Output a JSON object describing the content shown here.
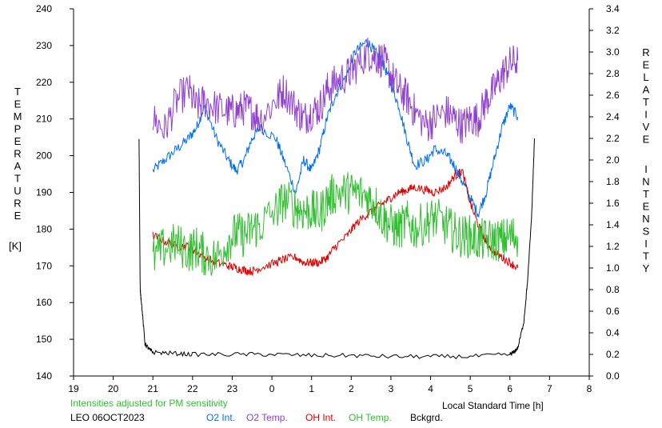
{
  "chart_data": {
    "type": "line",
    "title": "",
    "xlabel": "Local Standard Time [h]",
    "ylabel_left_letters": [
      "T",
      "E",
      "M",
      "P",
      "E",
      "R",
      "A",
      "T",
      "U",
      "R",
      "E"
    ],
    "ylabel_left_unit": "[K]",
    "ylabel_right_letters_1": [
      "R",
      "E",
      "L",
      "A",
      "T",
      "I",
      "V",
      "E"
    ],
    "ylabel_right_letters_2": [
      "I",
      "N",
      "T",
      "E",
      "N",
      "S",
      "I",
      "T",
      "Y"
    ],
    "xlim": [
      19,
      32
    ],
    "ylim_left": [
      140,
      240
    ],
    "ylim_right": [
      0.0,
      3.4
    ],
    "x_ticks": [
      19,
      20,
      21,
      22,
      23,
      24,
      25,
      26,
      27,
      28,
      29,
      30,
      31,
      32
    ],
    "x_tick_labels": [
      "19",
      "20",
      "21",
      "22",
      "23",
      "0",
      "1",
      "2",
      "3",
      "4",
      "5",
      "6",
      "7",
      "8"
    ],
    "y_left_ticks": [
      "140",
      "150",
      "160",
      "170",
      "180",
      "190",
      "200",
      "210",
      "220",
      "230",
      "240"
    ],
    "y_right_ticks": [
      "0.0",
      "0.2",
      "0.4",
      "0.6",
      "0.8",
      "1.0",
      "1.2",
      "1.4",
      "1.6",
      "1.8",
      "2.0",
      "2.2",
      "2.4",
      "2.6",
      "2.8",
      "3.0",
      "3.2",
      "3.4"
    ],
    "grid": false,
    "legend_position": "bottom",
    "note": "Intensities adjusted for PM sensitivity",
    "station": "LEO 06OCT2023",
    "series": [
      {
        "name": "O2 Int.",
        "axis": "right",
        "color": "#0070f0",
        "noise": 0.05,
        "x": [
          21.0,
          21.3,
          21.6,
          21.9,
          22.1,
          22.3,
          22.6,
          22.9,
          23.1,
          23.3,
          23.5,
          23.7,
          24.1,
          24.3,
          24.6,
          24.8,
          25.0,
          25.2,
          25.4,
          25.6,
          25.9,
          26.1,
          26.4,
          26.6,
          26.8,
          27.0,
          27.2,
          27.4,
          27.6,
          27.9,
          28.1,
          28.4,
          28.6,
          28.8,
          29.0,
          29.2,
          29.4,
          29.6,
          29.8,
          30.0,
          30.2
        ],
        "y": [
          1.9,
          2.0,
          2.1,
          2.2,
          2.3,
          2.5,
          2.2,
          2.0,
          1.9,
          2.0,
          2.2,
          2.3,
          2.2,
          2.0,
          1.7,
          2.0,
          1.9,
          2.1,
          2.4,
          2.6,
          2.8,
          3.0,
          3.1,
          3.0,
          2.9,
          2.7,
          2.5,
          2.2,
          1.95,
          2.0,
          2.1,
          2.05,
          1.95,
          1.8,
          1.65,
          1.5,
          1.7,
          2.0,
          2.3,
          2.5,
          2.4
        ]
      },
      {
        "name": "O2 Temp.",
        "axis": "left",
        "color": "#9040d0",
        "noise": 5,
        "x": [
          21.0,
          21.3,
          21.6,
          21.9,
          22.1,
          22.3,
          22.6,
          22.9,
          23.1,
          23.3,
          23.5,
          23.7,
          24.1,
          24.3,
          24.6,
          24.8,
          25.0,
          25.2,
          25.4,
          25.6,
          25.9,
          26.1,
          26.4,
          26.6,
          26.8,
          27.0,
          27.2,
          27.4,
          27.6,
          27.9,
          28.1,
          28.4,
          28.6,
          28.8,
          29.0,
          29.2,
          29.4,
          29.6,
          29.8,
          30.0,
          30.2
        ],
        "y": [
          210,
          207,
          215,
          218,
          213,
          215,
          213,
          212,
          212,
          213,
          212,
          210,
          215,
          218,
          213,
          210,
          212,
          213,
          218,
          220,
          222,
          224,
          228,
          227,
          226,
          222,
          218,
          216,
          212,
          208,
          210,
          212,
          210,
          208,
          210,
          210,
          215,
          218,
          222,
          225,
          226
        ]
      },
      {
        "name": "OH Int.",
        "axis": "right",
        "color": "#e00000",
        "noise": 0.04,
        "x": [
          21.0,
          21.3,
          21.6,
          21.9,
          22.1,
          22.3,
          22.6,
          22.9,
          23.1,
          23.3,
          23.5,
          23.7,
          24.1,
          24.3,
          24.6,
          24.8,
          25.0,
          25.2,
          25.4,
          25.6,
          25.9,
          26.1,
          26.4,
          26.6,
          26.8,
          27.0,
          27.2,
          27.4,
          27.6,
          27.9,
          28.1,
          28.4,
          28.6,
          28.8,
          29.0,
          29.2,
          29.4,
          29.6,
          29.8,
          30.0,
          30.2
        ],
        "y": [
          1.3,
          1.25,
          1.2,
          1.2,
          1.15,
          1.1,
          1.05,
          1.02,
          1.0,
          0.98,
          0.97,
          1.0,
          1.05,
          1.08,
          1.1,
          1.05,
          1.05,
          1.05,
          1.1,
          1.2,
          1.3,
          1.4,
          1.5,
          1.55,
          1.6,
          1.65,
          1.7,
          1.72,
          1.75,
          1.72,
          1.7,
          1.75,
          1.85,
          1.9,
          1.6,
          1.4,
          1.25,
          1.15,
          1.1,
          1.05,
          1.0
        ]
      },
      {
        "name": "OH Temp.",
        "axis": "left",
        "color": "#30c030",
        "noise": 6,
        "x": [
          21.0,
          21.3,
          21.6,
          21.9,
          22.1,
          22.3,
          22.6,
          22.9,
          23.1,
          23.3,
          23.5,
          23.7,
          24.1,
          24.3,
          24.6,
          24.8,
          25.0,
          25.2,
          25.4,
          25.6,
          25.9,
          26.1,
          26.4,
          26.6,
          26.8,
          27.0,
          27.2,
          27.4,
          27.6,
          27.9,
          28.1,
          28.4,
          28.6,
          28.8,
          29.0,
          29.2,
          29.4,
          29.6,
          29.8,
          30.0,
          30.2
        ],
        "y": [
          172,
          175,
          176,
          174,
          175,
          173,
          172,
          177,
          179,
          178,
          180,
          181,
          185,
          188,
          186,
          185,
          185,
          184,
          188,
          190,
          190,
          190,
          189,
          187,
          183,
          181,
          180,
          182,
          180,
          182,
          183,
          181,
          179,
          178,
          178,
          177,
          177,
          177,
          177,
          178,
          178
        ]
      },
      {
        "name": "Bckgrd.",
        "axis": "right",
        "color": "#000000",
        "noise": 0.02,
        "x": [
          20.65,
          20.68,
          20.72,
          20.8,
          20.9,
          21.0,
          21.5,
          22.0,
          23.0,
          24.0,
          25.0,
          26.0,
          27.0,
          28.0,
          29.0,
          30.0,
          30.1,
          30.2,
          30.35,
          30.45,
          30.55,
          30.62
        ],
        "y": [
          2.2,
          0.8,
          0.65,
          0.3,
          0.25,
          0.22,
          0.21,
          0.2,
          0.2,
          0.2,
          0.19,
          0.19,
          0.18,
          0.18,
          0.18,
          0.2,
          0.22,
          0.26,
          0.5,
          0.9,
          1.5,
          2.2
        ]
      }
    ]
  }
}
